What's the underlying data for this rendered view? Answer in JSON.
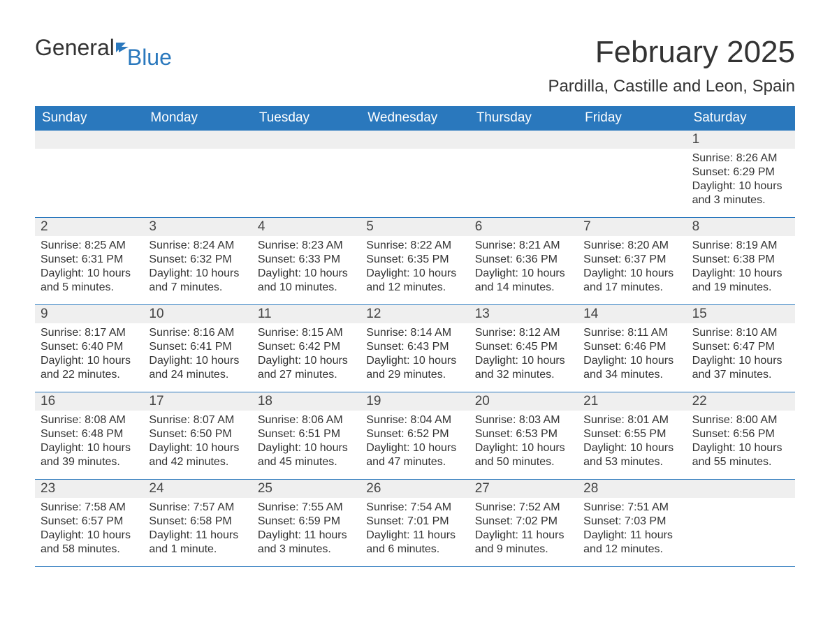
{
  "logo": {
    "word1": "General",
    "word2": "Blue"
  },
  "title": "February 2025",
  "location": "Pardilla, Castille and Leon, Spain",
  "colors": {
    "header_bg": "#2a78bd",
    "header_text": "#ffffff",
    "daynum_bg": "#efefef",
    "border": "#2a78bd",
    "body_text": "#333333",
    "logo_blue": "#2a78bd",
    "logo_dark": "#333333",
    "page_bg": "#ffffff"
  },
  "fonts": {
    "month_title_size_pt": 33,
    "location_size_pt": 18,
    "day_header_size_pt": 14,
    "day_number_size_pt": 14,
    "body_size_pt": 12
  },
  "layout": {
    "columns": 7,
    "rows": 5,
    "aspect_ratio": "1188:918"
  },
  "day_headers": [
    "Sunday",
    "Monday",
    "Tuesday",
    "Wednesday",
    "Thursday",
    "Friday",
    "Saturday"
  ],
  "weeks": [
    [
      null,
      null,
      null,
      null,
      null,
      null,
      {
        "num": "1",
        "sunrise": "Sunrise: 8:26 AM",
        "sunset": "Sunset: 6:29 PM",
        "daylight": "Daylight: 10 hours and 3 minutes."
      }
    ],
    [
      {
        "num": "2",
        "sunrise": "Sunrise: 8:25 AM",
        "sunset": "Sunset: 6:31 PM",
        "daylight": "Daylight: 10 hours and 5 minutes."
      },
      {
        "num": "3",
        "sunrise": "Sunrise: 8:24 AM",
        "sunset": "Sunset: 6:32 PM",
        "daylight": "Daylight: 10 hours and 7 minutes."
      },
      {
        "num": "4",
        "sunrise": "Sunrise: 8:23 AM",
        "sunset": "Sunset: 6:33 PM",
        "daylight": "Daylight: 10 hours and 10 minutes."
      },
      {
        "num": "5",
        "sunrise": "Sunrise: 8:22 AM",
        "sunset": "Sunset: 6:35 PM",
        "daylight": "Daylight: 10 hours and 12 minutes."
      },
      {
        "num": "6",
        "sunrise": "Sunrise: 8:21 AM",
        "sunset": "Sunset: 6:36 PM",
        "daylight": "Daylight: 10 hours and 14 minutes."
      },
      {
        "num": "7",
        "sunrise": "Sunrise: 8:20 AM",
        "sunset": "Sunset: 6:37 PM",
        "daylight": "Daylight: 10 hours and 17 minutes."
      },
      {
        "num": "8",
        "sunrise": "Sunrise: 8:19 AM",
        "sunset": "Sunset: 6:38 PM",
        "daylight": "Daylight: 10 hours and 19 minutes."
      }
    ],
    [
      {
        "num": "9",
        "sunrise": "Sunrise: 8:17 AM",
        "sunset": "Sunset: 6:40 PM",
        "daylight": "Daylight: 10 hours and 22 minutes."
      },
      {
        "num": "10",
        "sunrise": "Sunrise: 8:16 AM",
        "sunset": "Sunset: 6:41 PM",
        "daylight": "Daylight: 10 hours and 24 minutes."
      },
      {
        "num": "11",
        "sunrise": "Sunrise: 8:15 AM",
        "sunset": "Sunset: 6:42 PM",
        "daylight": "Daylight: 10 hours and 27 minutes."
      },
      {
        "num": "12",
        "sunrise": "Sunrise: 8:14 AM",
        "sunset": "Sunset: 6:43 PM",
        "daylight": "Daylight: 10 hours and 29 minutes."
      },
      {
        "num": "13",
        "sunrise": "Sunrise: 8:12 AM",
        "sunset": "Sunset: 6:45 PM",
        "daylight": "Daylight: 10 hours and 32 minutes."
      },
      {
        "num": "14",
        "sunrise": "Sunrise: 8:11 AM",
        "sunset": "Sunset: 6:46 PM",
        "daylight": "Daylight: 10 hours and 34 minutes."
      },
      {
        "num": "15",
        "sunrise": "Sunrise: 8:10 AM",
        "sunset": "Sunset: 6:47 PM",
        "daylight": "Daylight: 10 hours and 37 minutes."
      }
    ],
    [
      {
        "num": "16",
        "sunrise": "Sunrise: 8:08 AM",
        "sunset": "Sunset: 6:48 PM",
        "daylight": "Daylight: 10 hours and 39 minutes."
      },
      {
        "num": "17",
        "sunrise": "Sunrise: 8:07 AM",
        "sunset": "Sunset: 6:50 PM",
        "daylight": "Daylight: 10 hours and 42 minutes."
      },
      {
        "num": "18",
        "sunrise": "Sunrise: 8:06 AM",
        "sunset": "Sunset: 6:51 PM",
        "daylight": "Daylight: 10 hours and 45 minutes."
      },
      {
        "num": "19",
        "sunrise": "Sunrise: 8:04 AM",
        "sunset": "Sunset: 6:52 PM",
        "daylight": "Daylight: 10 hours and 47 minutes."
      },
      {
        "num": "20",
        "sunrise": "Sunrise: 8:03 AM",
        "sunset": "Sunset: 6:53 PM",
        "daylight": "Daylight: 10 hours and 50 minutes."
      },
      {
        "num": "21",
        "sunrise": "Sunrise: 8:01 AM",
        "sunset": "Sunset: 6:55 PM",
        "daylight": "Daylight: 10 hours and 53 minutes."
      },
      {
        "num": "22",
        "sunrise": "Sunrise: 8:00 AM",
        "sunset": "Sunset: 6:56 PM",
        "daylight": "Daylight: 10 hours and 55 minutes."
      }
    ],
    [
      {
        "num": "23",
        "sunrise": "Sunrise: 7:58 AM",
        "sunset": "Sunset: 6:57 PM",
        "daylight": "Daylight: 10 hours and 58 minutes."
      },
      {
        "num": "24",
        "sunrise": "Sunrise: 7:57 AM",
        "sunset": "Sunset: 6:58 PM",
        "daylight": "Daylight: 11 hours and 1 minute."
      },
      {
        "num": "25",
        "sunrise": "Sunrise: 7:55 AM",
        "sunset": "Sunset: 6:59 PM",
        "daylight": "Daylight: 11 hours and 3 minutes."
      },
      {
        "num": "26",
        "sunrise": "Sunrise: 7:54 AM",
        "sunset": "Sunset: 7:01 PM",
        "daylight": "Daylight: 11 hours and 6 minutes."
      },
      {
        "num": "27",
        "sunrise": "Sunrise: 7:52 AM",
        "sunset": "Sunset: 7:02 PM",
        "daylight": "Daylight: 11 hours and 9 minutes."
      },
      {
        "num": "28",
        "sunrise": "Sunrise: 7:51 AM",
        "sunset": "Sunset: 7:03 PM",
        "daylight": "Daylight: 11 hours and 12 minutes."
      },
      null
    ]
  ]
}
